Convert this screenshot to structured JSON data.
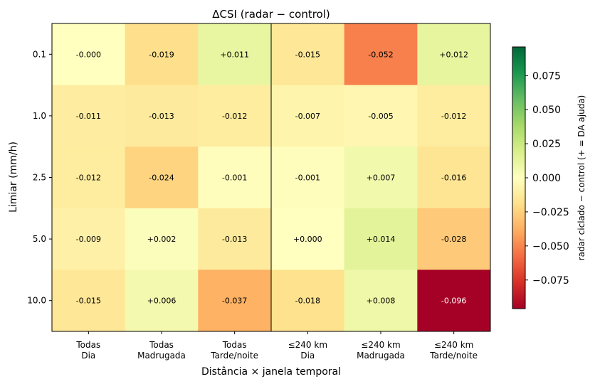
{
  "chart_data": {
    "type": "heatmap",
    "title": "ΔCSI  (radar − control)",
    "xlabel": "Distância × janela temporal",
    "ylabel": "Limiar (mm/h)",
    "x_categories": [
      [
        "Todas",
        "Dia"
      ],
      [
        "Todas",
        "Madrugada"
      ],
      [
        "Todas",
        "Tarde/noite"
      ],
      [
        "≤240 km",
        "Dia"
      ],
      [
        "≤240 km",
        "Madrugada"
      ],
      [
        "≤240 km",
        "Tarde/noite"
      ]
    ],
    "y_categories": [
      "0.1",
      "1.0",
      "2.5",
      "5.0",
      "10.0"
    ],
    "values": [
      [
        -0.0,
        -0.019,
        0.011,
        -0.015,
        -0.052,
        0.012
      ],
      [
        -0.011,
        -0.013,
        -0.012,
        -0.007,
        -0.005,
        -0.012
      ],
      [
        -0.012,
        -0.024,
        -0.001,
        -0.001,
        0.007,
        -0.016
      ],
      [
        -0.009,
        0.002,
        -0.013,
        0.0,
        0.014,
        -0.028
      ],
      [
        -0.015,
        0.006,
        -0.037,
        -0.018,
        0.008,
        -0.096
      ]
    ],
    "cell_labels": [
      [
        "-0.000",
        "-0.019",
        "+0.011",
        "-0.015",
        "-0.052",
        "+0.012"
      ],
      [
        "-0.011",
        "-0.013",
        "-0.012",
        "-0.007",
        "-0.005",
        "-0.012"
      ],
      [
        "-0.012",
        "-0.024",
        "-0.001",
        "-0.001",
        "+0.007",
        "-0.016"
      ],
      [
        "-0.009",
        "+0.002",
        "-0.013",
        "+0.000",
        "+0.014",
        "-0.028"
      ],
      [
        "-0.015",
        "+0.006",
        "-0.037",
        "-0.018",
        "+0.008",
        "-0.096"
      ]
    ],
    "colorbar": {
      "label": "radar ciclado − control  (+ = DA ajuda)",
      "colormap": "RdYlGn",
      "vmin": -0.096,
      "vmax": 0.096,
      "ticks": [
        0.075,
        0.05,
        0.025,
        0.0,
        -0.025,
        -0.05,
        -0.075
      ],
      "tick_labels": [
        "0.075",
        "0.050",
        "0.025",
        "0.000",
        "−0.025",
        "−0.050",
        "−0.075"
      ]
    },
    "separator_after_column": 2,
    "grid": false
  }
}
